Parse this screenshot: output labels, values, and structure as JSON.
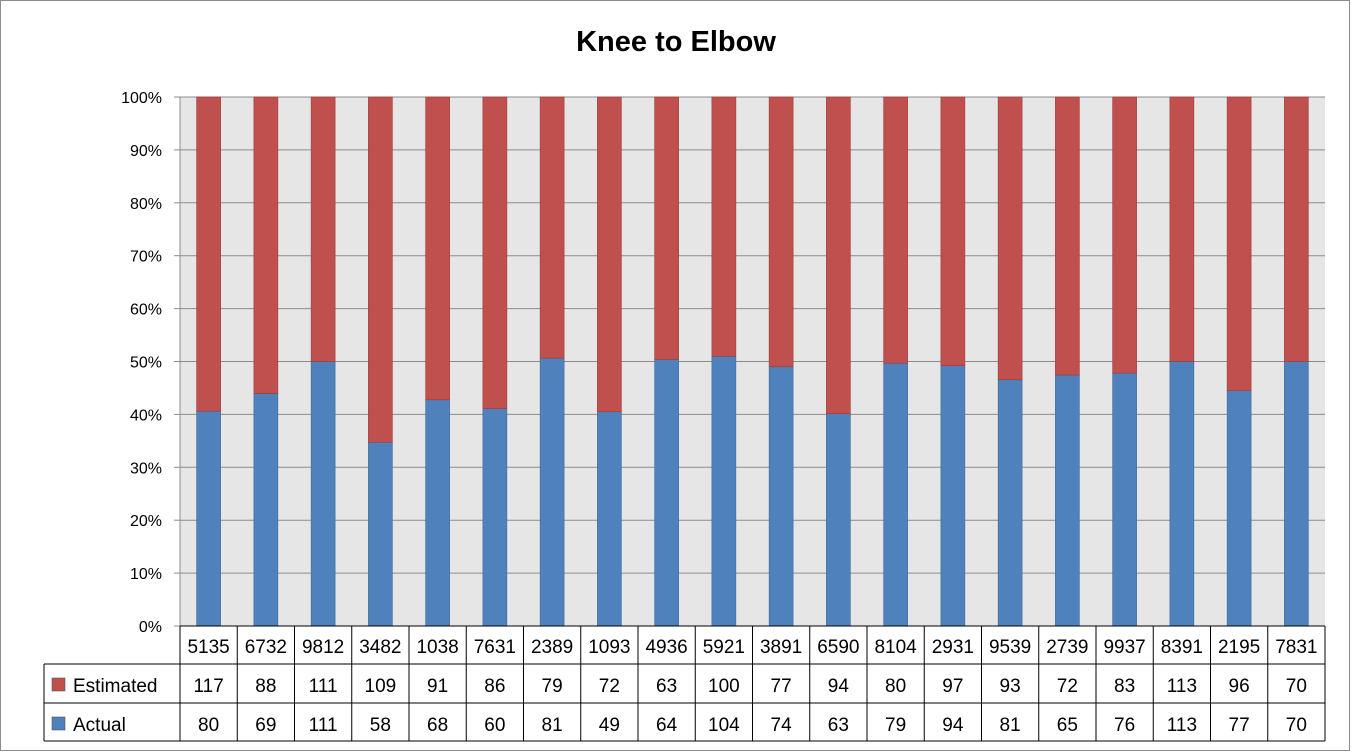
{
  "chart_data": {
    "type": "bar",
    "stacked": "percent",
    "title": "Knee to Elbow",
    "categories": [
      "5135",
      "6732",
      "9812",
      "3482",
      "1038",
      "7631",
      "2389",
      "1093",
      "4936",
      "5921",
      "3891",
      "6590",
      "8104",
      "2931",
      "9539",
      "2739",
      "9937",
      "8391",
      "2195",
      "7831"
    ],
    "series": [
      {
        "name": "Actual",
        "values": [
          80,
          69,
          111,
          58,
          68,
          60,
          81,
          49,
          64,
          104,
          74,
          63,
          79,
          94,
          81,
          65,
          76,
          113,
          77,
          70
        ]
      },
      {
        "name": "Estimated",
        "values": [
          117,
          88,
          111,
          109,
          91,
          86,
          79,
          72,
          63,
          100,
          77,
          94,
          80,
          97,
          93,
          72,
          83,
          113,
          96,
          70
        ]
      }
    ],
    "ylim": [
      0,
      100
    ],
    "y_ticks": [
      "0%",
      "10%",
      "20%",
      "30%",
      "40%",
      "50%",
      "60%",
      "70%",
      "80%",
      "90%",
      "100%"
    ],
    "grid": true,
    "legend": "data table",
    "colors": {
      "Actual": "#4f81bd",
      "Estimated": "#c0504d",
      "plot_bg": "#e6e6e6",
      "grid": "#8c8c8c"
    }
  }
}
